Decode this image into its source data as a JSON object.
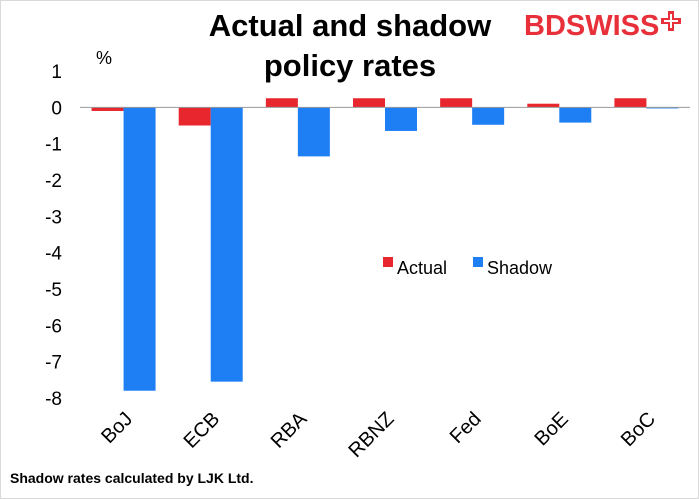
{
  "chart_data": {
    "type": "bar",
    "title": "Actual and shadow policy rates",
    "title_lines": [
      "Actual and shadow",
      "policy rates"
    ],
    "ylabel": "%",
    "xlabel": "",
    "ylim": [
      -8,
      1
    ],
    "yticks": [
      1,
      0,
      -1,
      -2,
      -3,
      -4,
      -5,
      -6,
      -7,
      -8
    ],
    "categories": [
      "BoJ",
      "ECB",
      "RBA",
      "RBNZ",
      "Fed",
      "BoE",
      "BoC"
    ],
    "series": [
      {
        "name": "Actual",
        "color": "#e8262e",
        "values": [
          -0.1,
          -0.5,
          0.25,
          0.25,
          0.25,
          0.1,
          0.25
        ]
      },
      {
        "name": "Shadow",
        "color": "#1e7ff5",
        "values": [
          -7.8,
          -7.55,
          -1.35,
          -0.65,
          -0.48,
          -0.42,
          -0.03
        ]
      }
    ],
    "legend_position": "center-right",
    "grid": false
  },
  "brand": {
    "name": "BDSWISS",
    "color": "#e8303a"
  },
  "footnote": "Shadow rates calculated by LJK Ltd."
}
